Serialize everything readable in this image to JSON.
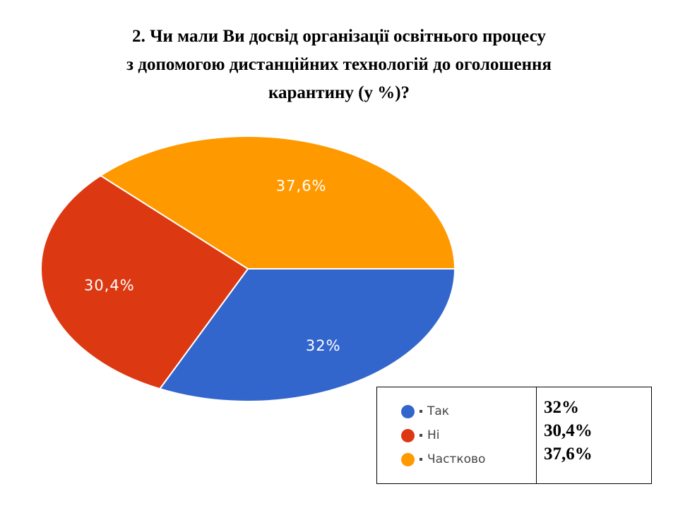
{
  "title": {
    "line1": "2. Чи мали Ви досвід організації освітнього процесу",
    "line2": "з допомогою дистанційних технологій до оголошення",
    "line3": "карантину (у %)?"
  },
  "chart_data": {
    "type": "pie",
    "title": "2. Чи мали Ви досвід організації освітнього процесу з допомогою дистанційних технологій до оголошення карантину (у %)?",
    "categories": [
      "Так",
      "Ні",
      "Частково"
    ],
    "values": [
      32,
      30.4,
      37.6
    ],
    "slice_labels": [
      "32%",
      "30,4%",
      "37,6%"
    ],
    "colors": [
      "#3366cc",
      "#dc3912",
      "#ff9900"
    ],
    "legend_position": "bottom-right"
  },
  "legend": {
    "items": [
      {
        "label": "Так",
        "color": "#3366cc"
      },
      {
        "label": "Ні",
        "color": "#dc3912"
      },
      {
        "label": "Частково",
        "color": "#ff9900"
      }
    ],
    "values": [
      "32%",
      "30,4%",
      "37,6%"
    ]
  }
}
